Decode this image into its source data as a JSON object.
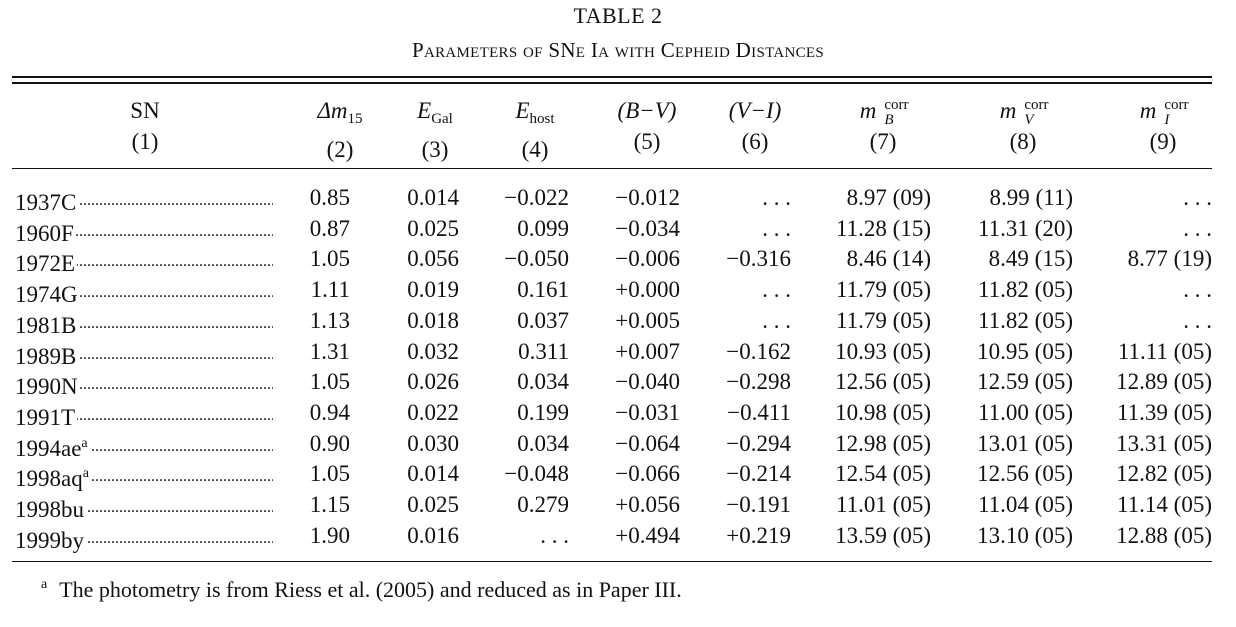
{
  "title": "TABLE 2",
  "subtitle": "Parameters of SNe Ia with Cepheid Distances",
  "columns": [
    {
      "label": "SN",
      "num": "(1)"
    },
    {
      "sym": "Δm",
      "sub": "15",
      "num": "(2)"
    },
    {
      "sym": "E",
      "sub": "Gal",
      "num": "(3)"
    },
    {
      "sym": "E",
      "sub": "host",
      "num": "(4)"
    },
    {
      "label": "(B−V)",
      "num": "(5)"
    },
    {
      "label": "(V−I)",
      "num": "(6)"
    },
    {
      "sym": "m",
      "sup": "corr",
      "sub": "B",
      "num": "(7)"
    },
    {
      "sym": "m",
      "sup": "corr",
      "sub": "V",
      "num": "(8)"
    },
    {
      "sym": "m",
      "sup": "corr",
      "sub": "I",
      "num": "(9)"
    }
  ],
  "rows": [
    {
      "sn": "1937C",
      "mark": "",
      "dm15": "0.85",
      "egal": "0.014",
      "ehost": "−0.022",
      "bv": "−0.012",
      "vi": ". . .",
      "mb": "8.97 (09)",
      "mv": "8.99 (11)",
      "mi": ". . ."
    },
    {
      "sn": "1960F",
      "mark": "",
      "dm15": "0.87",
      "egal": "0.025",
      "ehost": "0.099",
      "bv": "−0.034",
      "vi": ". . .",
      "mb": "11.28 (15)",
      "mv": "11.31 (20)",
      "mi": ". . ."
    },
    {
      "sn": "1972E",
      "mark": "",
      "dm15": "1.05",
      "egal": "0.056",
      "ehost": "−0.050",
      "bv": "−0.006",
      "vi": "−0.316",
      "mb": "8.46 (14)",
      "mv": "8.49 (15)",
      "mi": "8.77 (19)"
    },
    {
      "sn": "1974G",
      "mark": "",
      "dm15": "1.11",
      "egal": "0.019",
      "ehost": "0.161",
      "bv": "+0.000",
      "vi": ". . .",
      "mb": "11.79 (05)",
      "mv": "11.82 (05)",
      "mi": ". . ."
    },
    {
      "sn": "1981B",
      "mark": "",
      "dm15": "1.13",
      "egal": "0.018",
      "ehost": "0.037",
      "bv": "+0.005",
      "vi": ". . .",
      "mb": "11.79 (05)",
      "mv": "11.82 (05)",
      "mi": ". . ."
    },
    {
      "sn": "1989B",
      "mark": "",
      "dm15": "1.31",
      "egal": "0.032",
      "ehost": "0.311",
      "bv": "+0.007",
      "vi": "−0.162",
      "mb": "10.93 (05)",
      "mv": "10.95 (05)",
      "mi": "11.11 (05)"
    },
    {
      "sn": "1990N",
      "mark": "",
      "dm15": "1.05",
      "egal": "0.026",
      "ehost": "0.034",
      "bv": "−0.040",
      "vi": "−0.298",
      "mb": "12.56 (05)",
      "mv": "12.59 (05)",
      "mi": "12.89 (05)"
    },
    {
      "sn": "1991T",
      "mark": "",
      "dm15": "0.94",
      "egal": "0.022",
      "ehost": "0.199",
      "bv": "−0.031",
      "vi": "−0.411",
      "mb": "10.98 (05)",
      "mv": "11.00 (05)",
      "mi": "11.39 (05)"
    },
    {
      "sn": "1994ae",
      "mark": "a",
      "dm15": "0.90",
      "egal": "0.030",
      "ehost": "0.034",
      "bv": "−0.064",
      "vi": "−0.294",
      "mb": "12.98 (05)",
      "mv": "13.01 (05)",
      "mi": "13.31 (05)"
    },
    {
      "sn": "1998aq",
      "mark": "a",
      "dm15": "1.05",
      "egal": "0.014",
      "ehost": "−0.048",
      "bv": "−0.066",
      "vi": "−0.214",
      "mb": "12.54 (05)",
      "mv": "12.56 (05)",
      "mi": "12.82 (05)"
    },
    {
      "sn": "1998bu",
      "mark": "",
      "dm15": "1.15",
      "egal": "0.025",
      "ehost": "0.279",
      "bv": "+0.056",
      "vi": "−0.191",
      "mb": "11.01 (05)",
      "mv": "11.04 (05)",
      "mi": "11.14 (05)"
    },
    {
      "sn": "1999by",
      "mark": "",
      "dm15": "1.90",
      "egal": "0.016",
      "ehost": ". . .",
      "bv": "+0.494",
      "vi": "+0.219",
      "mb": "13.59 (05)",
      "mv": "13.10 (05)",
      "mi": "12.88 (05)"
    }
  ],
  "footnote": {
    "mark": "a",
    "text": "The photometry is from Riess et al. (2005) and reduced as in Paper III."
  }
}
